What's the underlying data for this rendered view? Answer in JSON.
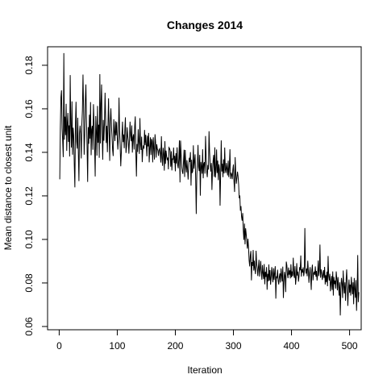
{
  "chart_data": {
    "type": "line",
    "title": "Changes 2014",
    "xlabel": "Iteration",
    "ylabel": "Mean distance to closest unit",
    "xlim": [
      -20,
      520
    ],
    "ylim": [
      0.0585,
      0.1885
    ],
    "xticks": [
      0,
      100,
      200,
      300,
      400,
      500
    ],
    "xtick_labels": [
      "0",
      "100",
      "200",
      "300",
      "400",
      "500"
    ],
    "yticks": [
      0.06,
      0.08,
      0.1,
      0.12,
      0.14,
      0.16,
      0.18
    ],
    "ytick_labels": [
      "0.06",
      "0.08",
      "0.10",
      "0.12",
      "0.14",
      "0.16",
      "0.18"
    ],
    "grid": false,
    "line_color": "#000000",
    "series": [
      {
        "x_start": 1,
        "x_step": 1,
        "values": [
          0.1276,
          0.1512,
          0.1653,
          0.1685,
          0.1512,
          0.1452,
          0.1378,
          0.1856,
          0.1458,
          0.1564,
          0.1479,
          0.1623,
          0.1407,
          0.1534,
          0.1581,
          0.1448,
          0.1524,
          0.1381,
          0.1755,
          0.1523,
          0.1422,
          0.1634,
          0.1389,
          0.1513,
          0.1478,
          0.1342,
          0.1239,
          0.1526,
          0.1632,
          0.1451,
          0.1417,
          0.1559,
          0.1397,
          0.1268,
          0.1486,
          0.1523,
          0.1481,
          0.1372,
          0.1528,
          0.1593,
          0.1757,
          0.1602,
          0.1389,
          0.1482,
          0.1636,
          0.1712,
          0.1552,
          0.1428,
          0.1264,
          0.1516,
          0.1439,
          0.1573,
          0.1463,
          0.1631,
          0.1387,
          0.1505,
          0.1522,
          0.1412,
          0.1621,
          0.1533,
          0.1424,
          0.1289,
          0.1567,
          0.1497,
          0.1385,
          0.1613,
          0.1444,
          0.1527,
          0.1375,
          0.1759,
          0.1441,
          0.1623,
          0.1712,
          0.1484,
          0.1366,
          0.1549,
          0.1453,
          0.1538,
          0.1674,
          0.1551,
          0.1443,
          0.1522,
          0.1401,
          0.1531,
          0.1648,
          0.1487,
          0.1361,
          0.1543,
          0.1602,
          0.1522,
          0.1469,
          0.1411,
          0.1383,
          0.1552,
          0.1497,
          0.1452,
          0.1543,
          0.1478,
          0.1539,
          0.1468,
          0.1413,
          0.1467,
          0.1651,
          0.1502,
          0.1427,
          0.1336,
          0.1398,
          0.1474,
          0.1541,
          0.1447,
          0.1482,
          0.1419,
          0.1504,
          0.1561,
          0.1397,
          0.1427,
          0.1515,
          0.1475,
          0.1452,
          0.1394,
          0.1458,
          0.1541,
          0.1475,
          0.1451,
          0.1524,
          0.1399,
          0.1469,
          0.1483,
          0.1413,
          0.1519,
          0.1565,
          0.1397,
          0.1289,
          0.1438,
          0.1402,
          0.1506,
          0.1446,
          0.1393,
          0.1557,
          0.1442,
          0.1411,
          0.1472,
          0.1355,
          0.1413,
          0.1432,
          0.1417,
          0.1503,
          0.1433,
          0.1481,
          0.1436,
          0.1382,
          0.1476,
          0.1427,
          0.1489,
          0.1354,
          0.1421,
          0.1469,
          0.1388,
          0.1462,
          0.1452,
          0.1354,
          0.1469,
          0.1419,
          0.1367,
          0.1483,
          0.1446,
          0.1376,
          0.1437,
          0.1416,
          0.1408,
          0.1384,
          0.1412,
          0.1417,
          0.1394,
          0.1353,
          0.1474,
          0.1375,
          0.1338,
          0.1421,
          0.1392,
          0.1316,
          0.1451,
          0.1347,
          0.1408,
          0.1382,
          0.1364,
          0.1376,
          0.1322,
          0.1422,
          0.1418,
          0.1408,
          0.1334,
          0.1405,
          0.1317,
          0.1372,
          0.1366,
          0.1422,
          0.1351,
          0.1384,
          0.1313,
          0.1396,
          0.1349,
          0.1423,
          0.1342,
          0.1327,
          0.1372,
          0.1455,
          0.1262,
          0.1454,
          0.1388,
          0.1334,
          0.1311,
          0.1301,
          0.1356,
          0.1412,
          0.1287,
          0.1411,
          0.1339,
          0.1308,
          0.1364,
          0.1321,
          0.1275,
          0.1336,
          0.1375,
          0.1356,
          0.1401,
          0.1247,
          0.1366,
          0.1305,
          0.1314,
          0.1432,
          0.1325,
          0.1358,
          0.1391,
          0.1276,
          0.1117,
          0.1302,
          0.1345,
          0.1434,
          0.1332,
          0.1314,
          0.1388,
          0.1201,
          0.1356,
          0.1335,
          0.1302,
          0.1414,
          0.1281,
          0.1348,
          0.1355,
          0.1302,
          0.1475,
          0.1381,
          0.1312,
          0.1286,
          0.1342,
          0.1321,
          0.1497,
          0.1403,
          0.1345,
          0.1312,
          0.1351,
          0.1227,
          0.1315,
          0.1362,
          0.1388,
          0.1288,
          0.1423,
          0.1284,
          0.1319,
          0.1413,
          0.1305,
          0.1362,
          0.1272,
          0.1345,
          0.1322,
          0.1155,
          0.1302,
          0.1455,
          0.1312,
          0.1348,
          0.1286,
          0.1368,
          0.1303,
          0.1422,
          0.1321,
          0.1305,
          0.1351,
          0.1324,
          0.1294,
          0.1362,
          0.1286,
          0.1333,
          0.1414,
          0.1278,
          0.1306,
          0.1298,
          0.1277,
          0.1322,
          0.1344,
          0.1265,
          0.1218,
          0.1378,
          0.1305,
          0.1256,
          0.1284,
          0.1311,
          0.1289,
          0.1251,
          0.1189,
          0.1202,
          0.1132,
          0.1153,
          0.1104,
          0.1086,
          0.1121,
          0.1042,
          0.0998,
          0.1073,
          0.0977,
          0.1051,
          0.1024,
          0.0992,
          0.0958,
          0.1003,
          0.0964,
          0.0904,
          0.0876,
          0.0925,
          0.0947,
          0.0812,
          0.0896,
          0.0878,
          0.0951,
          0.0857,
          0.0902,
          0.0863,
          0.0841,
          0.0948,
          0.0888,
          0.0869,
          0.0832,
          0.0871,
          0.0906,
          0.0829,
          0.0864,
          0.0901,
          0.0853,
          0.0815,
          0.0882,
          0.0846,
          0.0818,
          0.0887,
          0.0794,
          0.0851,
          0.0828,
          0.0873,
          0.0769,
          0.0842,
          0.0808,
          0.0885,
          0.0811,
          0.0859,
          0.0792,
          0.0827,
          0.0873,
          0.0838,
          0.0803,
          0.0868,
          0.0814,
          0.0846,
          0.0877,
          0.0728,
          0.0831,
          0.0821,
          0.0861,
          0.0811,
          0.0793,
          0.0826,
          0.0844,
          0.0802,
          0.0867,
          0.0836,
          0.0807,
          0.0875,
          0.0731,
          0.0804,
          0.0851,
          0.0832,
          0.0758,
          0.0898,
          0.0881,
          0.0839,
          0.0822,
          0.0871,
          0.0838,
          0.0858,
          0.0821,
          0.0886,
          0.0826,
          0.0853,
          0.0831,
          0.0916,
          0.0842,
          0.0823,
          0.0877,
          0.0792,
          0.0822,
          0.0891,
          0.0834,
          0.0852,
          0.0806,
          0.0833,
          0.0873,
          0.0858,
          0.0926,
          0.0829,
          0.0863,
          0.0848,
          0.0872,
          0.0831,
          0.0851,
          0.1052,
          0.0876,
          0.0843,
          0.0866,
          0.0831,
          0.0902,
          0.0858,
          0.0801,
          0.0844,
          0.0873,
          0.0826,
          0.0768,
          0.0861,
          0.0884,
          0.0812,
          0.0843,
          0.0852,
          0.0837,
          0.0876,
          0.0829,
          0.0855,
          0.0811,
          0.0842,
          0.0903,
          0.0832,
          0.0858,
          0.0976,
          0.0824,
          0.0862,
          0.0846,
          0.0814,
          0.0835,
          0.0859,
          0.0823,
          0.0874,
          0.0793,
          0.0836,
          0.0803,
          0.0852,
          0.0785,
          0.0924,
          0.0832,
          0.0811,
          0.0842,
          0.0762,
          0.0801,
          0.0832,
          0.0768,
          0.0853,
          0.0742,
          0.0828,
          0.0795,
          0.0811,
          0.0774,
          0.0853,
          0.0818,
          0.0766,
          0.0827,
          0.0788,
          0.0742,
          0.0803,
          0.0651,
          0.0772,
          0.0823,
          0.0798,
          0.0731,
          0.0857,
          0.0788,
          0.0752,
          0.0803,
          0.0718,
          0.0812,
          0.0862,
          0.0785,
          0.0695,
          0.0772,
          0.0816,
          0.0755,
          0.0793,
          0.0742,
          0.0828,
          0.0783,
          0.0748,
          0.0803,
          0.0702,
          0.0823,
          0.0772,
          0.0732,
          0.0813,
          0.0672,
          0.0752,
          0.0928,
          0.0712,
          0.0758
        ]
      }
    ]
  }
}
